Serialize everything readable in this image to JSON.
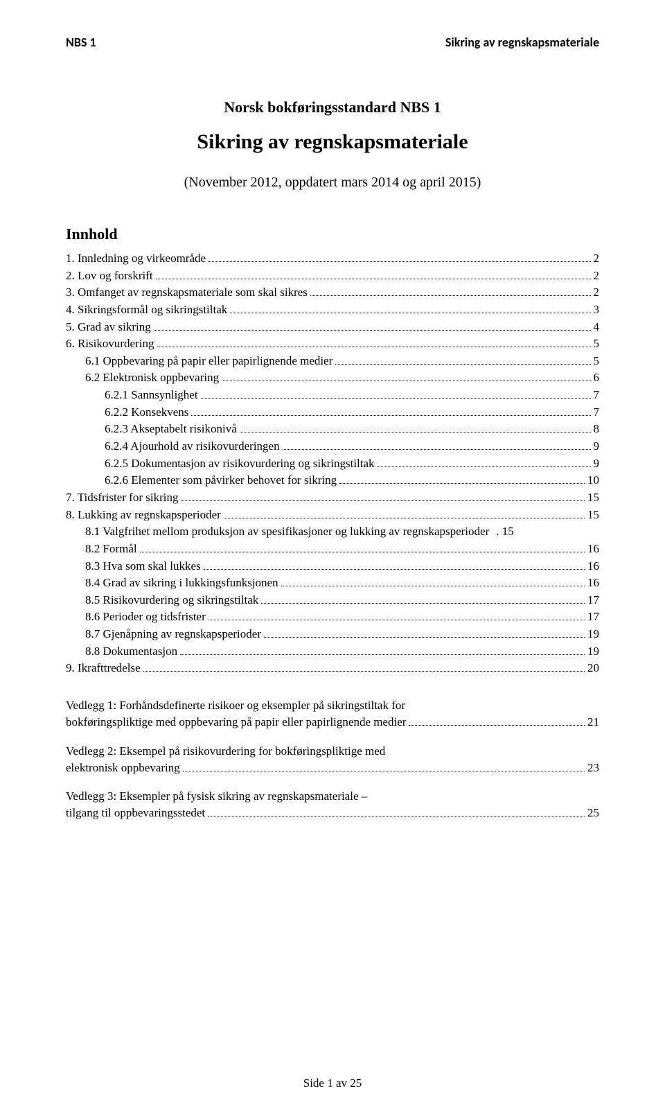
{
  "header": {
    "left": "NBS 1",
    "right": "Sikring av regnskapsmateriale"
  },
  "title_line1": "Norsk bokføringsstandard NBS 1",
  "title_line2": "Sikring av regnskapsmateriale",
  "subtitle": "(November 2012, oppdatert mars 2014 og april 2015)",
  "toc_heading": "Innhold",
  "toc": [
    {
      "label": "1.   Innledning og virkeområde",
      "page": "2",
      "indent": 0
    },
    {
      "label": "2.   Lov og forskrift",
      "page": "2",
      "indent": 0
    },
    {
      "label": "3.   Omfanget av regnskapsmateriale som skal sikres",
      "page": "2",
      "indent": 0
    },
    {
      "label": "4.   Sikringsformål og sikringstiltak",
      "page": "3",
      "indent": 0
    },
    {
      "label": "5.   Grad av sikring",
      "page": "4",
      "indent": 0
    },
    {
      "label": "6.   Risikovurdering",
      "page": "5",
      "indent": 0
    },
    {
      "label": "6.1 Oppbevaring på papir eller papirlignende medier",
      "page": "5",
      "indent": 1
    },
    {
      "label": "6.2 Elektronisk oppbevaring",
      "page": "6",
      "indent": 1
    },
    {
      "label": "6.2.1 Sannsynlighet",
      "page": "7",
      "indent": 2
    },
    {
      "label": "6.2.2 Konsekvens",
      "page": "7",
      "indent": 2
    },
    {
      "label": "6.2.3 Akseptabelt risikonivå",
      "page": "8",
      "indent": 2
    },
    {
      "label": "6.2.4 Ajourhold av risikovurderingen",
      "page": "9",
      "indent": 2
    },
    {
      "label": "6.2.5 Dokumentasjon av risikovurdering og sikringstiltak",
      "page": "9",
      "indent": 2
    },
    {
      "label": "6.2.6 Elementer som påvirker behovet for sikring",
      "page": "10",
      "indent": 2
    },
    {
      "label": "7.   Tidsfrister for sikring",
      "page": "15",
      "indent": 0
    },
    {
      "label": "8.   Lukking av regnskapsperioder",
      "page": "15",
      "indent": 0
    },
    {
      "label": "8.1 Valgfrihet mellom produksjon av spesifikasjoner og lukking av regnskapsperioder",
      "page": "15",
      "indent": 1,
      "noleader": true
    },
    {
      "label": "8.2 Formål",
      "page": "16",
      "indent": 1
    },
    {
      "label": "8.3 Hva som skal lukkes",
      "page": "16",
      "indent": 1
    },
    {
      "label": "8.4 Grad av sikring i lukkingsfunksjonen",
      "page": "16",
      "indent": 1
    },
    {
      "label": "8.5 Risikovurdering og sikringstiltak",
      "page": "17",
      "indent": 1
    },
    {
      "label": "8.6 Perioder og tidsfrister",
      "page": "17",
      "indent": 1
    },
    {
      "label": "8.7 Gjenåpning av regnskapsperioder",
      "page": "19",
      "indent": 1
    },
    {
      "label": "8.8 Dokumentasjon",
      "page": "19",
      "indent": 1
    },
    {
      "label": "9.   Ikrafttredelse",
      "page": "20",
      "indent": 0
    }
  ],
  "appendix": [
    {
      "label_line1": "Vedlegg 1: Forhåndsdefinerte risikoer og eksempler på sikringstiltak for",
      "label_line2": "bokføringspliktige med oppbevaring på papir eller papirlignende medier",
      "page": "21"
    },
    {
      "label_line1": "Vedlegg 2: Eksempel på risikovurdering for bokføringspliktige med",
      "label_line2": "elektronisk oppbevaring",
      "page": "23"
    },
    {
      "label_line1": "Vedlegg 3: Eksempler på fysisk sikring av regnskapsmateriale –",
      "label_line2": "tilgang til oppbevaringsstedet",
      "page": "25"
    }
  ],
  "footer": "Side 1 av 25"
}
